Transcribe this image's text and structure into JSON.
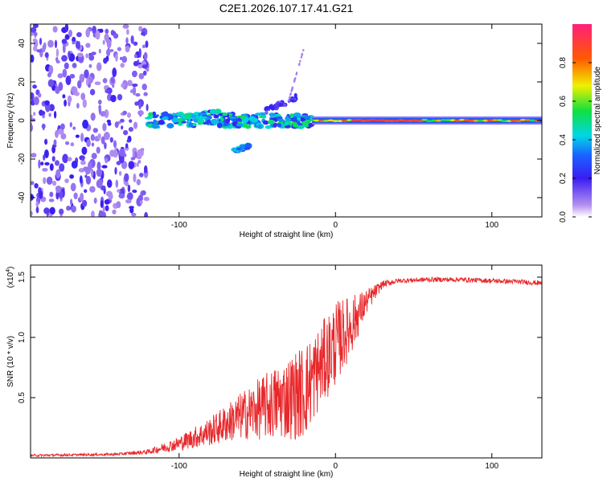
{
  "page_title": "C2E1.2026.107.17.41.G21",
  "chart_data": [
    {
      "type": "heatmap",
      "title": "C2E1.2026.107.17.41.G21",
      "xlabel": "Height of straight line (km)",
      "ylabel": "Frequency (Hz)",
      "xlim": [
        -195,
        132
      ],
      "ylim": [
        -50,
        50
      ],
      "x_ticks": [
        -100,
        0,
        100
      ],
      "x_tick_labels": [
        "-100",
        "0",
        "100"
      ],
      "y_ticks": [
        -40,
        -20,
        0,
        20,
        40
      ],
      "y_tick_labels": [
        "-40",
        "-20",
        "0",
        "20",
        "40"
      ],
      "colorbar": {
        "label": "Normalized spectral amplitude",
        "range": [
          0,
          1
        ],
        "ticks": [
          0.0,
          0.2,
          0.4,
          0.6,
          0.8
        ],
        "tick_labels": [
          "0.0",
          "0.2",
          "0.4",
          "0.6",
          "0.8"
        ]
      },
      "features": {
        "noise_region_x": [
          -195,
          -120
        ],
        "main_ridge_freq_hz": 0,
        "branch_lower": {
          "x": [
            -65,
            -55
          ],
          "freq": [
            -16,
            -13
          ]
        },
        "branch_upper": {
          "x": [
            -45,
            -25
          ],
          "freq": [
            5,
            12
          ]
        }
      },
      "grid": false
    },
    {
      "type": "line",
      "xlabel": "Height of straight line (km)",
      "ylabel": "SNR (10 * v/v)",
      "y_scale_label": "(x10",
      "y_scale_exp": "4",
      "y_scale_close": ")",
      "xlim": [
        -195,
        132
      ],
      "ylim": [
        0,
        1.6
      ],
      "x_ticks": [
        -100,
        0,
        100
      ],
      "x_tick_labels": [
        "-100",
        "0",
        "100"
      ],
      "y_ticks": [
        0.5,
        1.0,
        1.5
      ],
      "y_tick_labels": [
        "0.5",
        "1.0",
        "1.5"
      ],
      "series": [
        {
          "name": "SNR",
          "color": "#e8282b",
          "envelope_x": [
            -195,
            -140,
            -120,
            -100,
            -80,
            -60,
            -40,
            -20,
            -10,
            0,
            10,
            20,
            30,
            40,
            60,
            80,
            100,
            120,
            132
          ],
          "envelope_mean": [
            0.02,
            0.03,
            0.05,
            0.12,
            0.22,
            0.35,
            0.45,
            0.55,
            0.75,
            0.95,
            1.1,
            1.3,
            1.44,
            1.47,
            1.48,
            1.48,
            1.47,
            1.46,
            1.45
          ],
          "envelope_spread": [
            0.01,
            0.01,
            0.02,
            0.06,
            0.12,
            0.2,
            0.3,
            0.4,
            0.35,
            0.35,
            0.25,
            0.1,
            0.03,
            0.02,
            0.02,
            0.02,
            0.02,
            0.02,
            0.02
          ]
        }
      ],
      "grid": false
    }
  ]
}
